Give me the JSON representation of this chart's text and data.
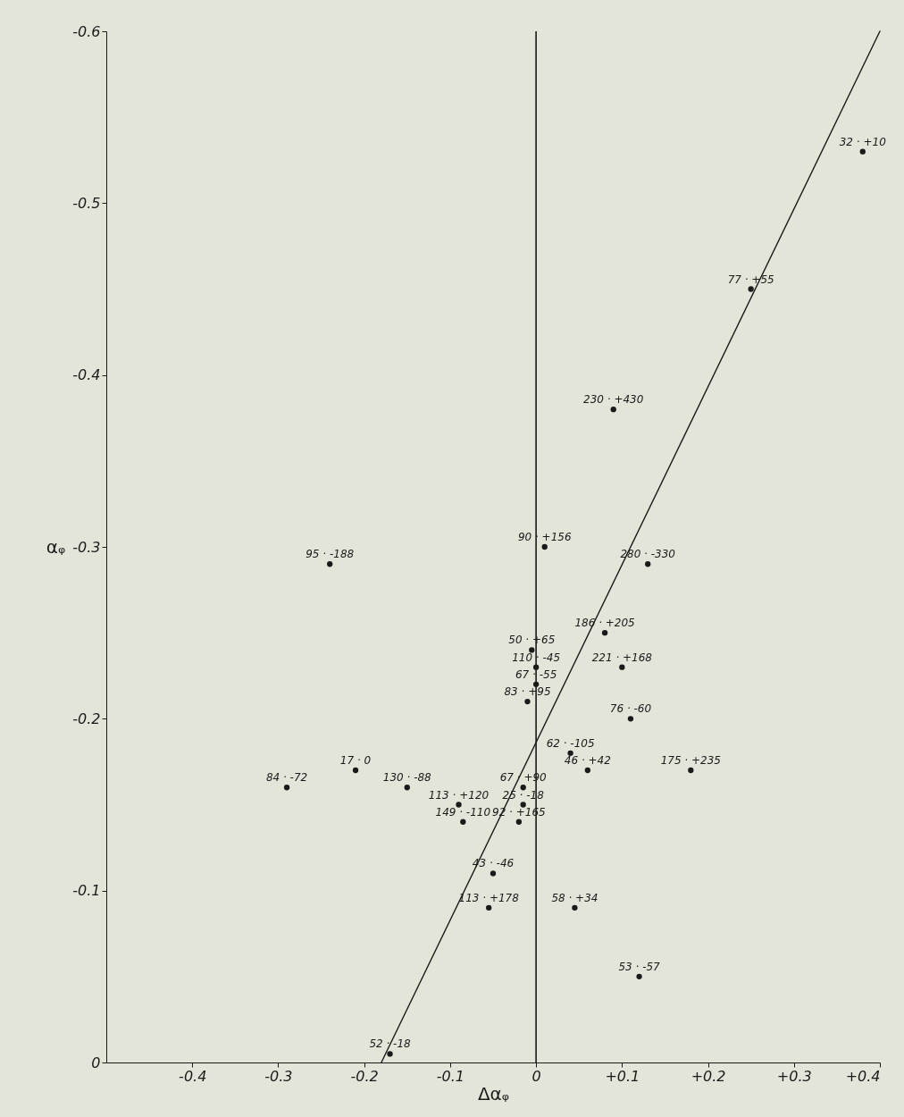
{
  "chart_data": {
    "type": "scatter",
    "xlabel": "Δαᵩ",
    "ylabel": "αᵩ",
    "xlim": [
      -0.5,
      0.4
    ],
    "ylim": [
      0,
      -0.6
    ],
    "xticks": [
      -0.4,
      -0.3,
      -0.2,
      -0.1,
      0,
      {
        "value": 0.1,
        "label": "+0.1"
      },
      {
        "value": 0.2,
        "label": "+0.2"
      },
      {
        "value": 0.3,
        "label": "+0.3"
      },
      {
        "value": 0.4,
        "label": "+0.4"
      }
    ],
    "yticks": [
      0,
      -0.1,
      -0.2,
      -0.3,
      -0.4,
      -0.5,
      -0.6
    ],
    "grid": false,
    "legend": false,
    "series": [
      {
        "marker": "circle",
        "color": "#1a1a1a",
        "x": [
          0.38,
          0.25,
          0.09,
          -0.24,
          0.01,
          0.13,
          0.08,
          -0.005,
          0,
          0.1,
          0,
          -0.01,
          0.11,
          0.04,
          0.06,
          0.18,
          -0.21,
          -0.29,
          -0.15,
          -0.015,
          -0.09,
          -0.015,
          -0.085,
          -0.02,
          -0.05,
          -0.055,
          0.045,
          0.12,
          -0.17
        ],
        "values": [
          -0.53,
          -0.45,
          -0.38,
          -0.29,
          -0.3,
          -0.29,
          -0.25,
          -0.24,
          -0.23,
          -0.23,
          -0.22,
          -0.21,
          -0.2,
          -0.18,
          -0.17,
          -0.17,
          -0.17,
          -0.16,
          -0.16,
          -0.16,
          -0.15,
          -0.15,
          -0.14,
          -0.14,
          -0.11,
          -0.09,
          -0.09,
          -0.05,
          -0.005
        ]
      },
      {
        "type": "line",
        "color": "#1a1a1a",
        "line_style": "solid",
        "x": [
          -0.18,
          0.4
        ],
        "values": [
          0,
          -0.6
        ]
      }
    ],
    "ref_lines": [
      {
        "axis": "x",
        "value": 0,
        "color": "#1a1a1a"
      }
    ],
    "annotations": [
      {
        "text": "32 · +10",
        "x": 0.38,
        "y": -0.53
      },
      {
        "text": "77 · +55",
        "x": 0.25,
        "y": -0.45
      },
      {
        "text": "230 · +430",
        "x": 0.09,
        "y": -0.38
      },
      {
        "text": "95 · -188",
        "x": -0.24,
        "y": -0.29
      },
      {
        "text": "90 · +156",
        "x": 0.01,
        "y": -0.3
      },
      {
        "text": "280 · -330",
        "x": 0.13,
        "y": -0.29
      },
      {
        "text": "186 · +205",
        "x": 0.08,
        "y": -0.25
      },
      {
        "text": "50 · +65",
        "x": -0.005,
        "y": -0.24
      },
      {
        "text": "110 · -45",
        "x": 0,
        "y": -0.23
      },
      {
        "text": "221 · +168",
        "x": 0.1,
        "y": -0.23
      },
      {
        "text": "67 · -55",
        "x": 0,
        "y": -0.22
      },
      {
        "text": "83 · +95",
        "x": -0.01,
        "y": -0.21
      },
      {
        "text": "76 · -60",
        "x": 0.11,
        "y": -0.2
      },
      {
        "text": "62 · -105",
        "x": 0.04,
        "y": -0.18
      },
      {
        "text": "46 · +42",
        "x": 0.06,
        "y": -0.17
      },
      {
        "text": "175 · +235",
        "x": 0.18,
        "y": -0.17
      },
      {
        "text": "17 · 0",
        "x": -0.21,
        "y": -0.17
      },
      {
        "text": "84 · -72",
        "x": -0.29,
        "y": -0.16
      },
      {
        "text": "130 · -88",
        "x": -0.15,
        "y": -0.16
      },
      {
        "text": "67 · +90",
        "x": -0.015,
        "y": -0.16
      },
      {
        "text": "113 · +120",
        "x": -0.09,
        "y": -0.15
      },
      {
        "text": "25 · -18",
        "x": -0.015,
        "y": -0.15
      },
      {
        "text": "149 · -110",
        "x": -0.085,
        "y": -0.14
      },
      {
        "text": "92 · +165",
        "x": -0.02,
        "y": -0.14
      },
      {
        "text": "43 · -46",
        "x": -0.05,
        "y": -0.11
      },
      {
        "text": "113 · +178",
        "x": -0.055,
        "y": -0.09
      },
      {
        "text": "58 · +34",
        "x": 0.045,
        "y": -0.09
      },
      {
        "text": "53 · -57",
        "x": 0.12,
        "y": -0.05
      },
      {
        "text": "52 · -18",
        "x": -0.17,
        "y": -0.005
      }
    ]
  }
}
